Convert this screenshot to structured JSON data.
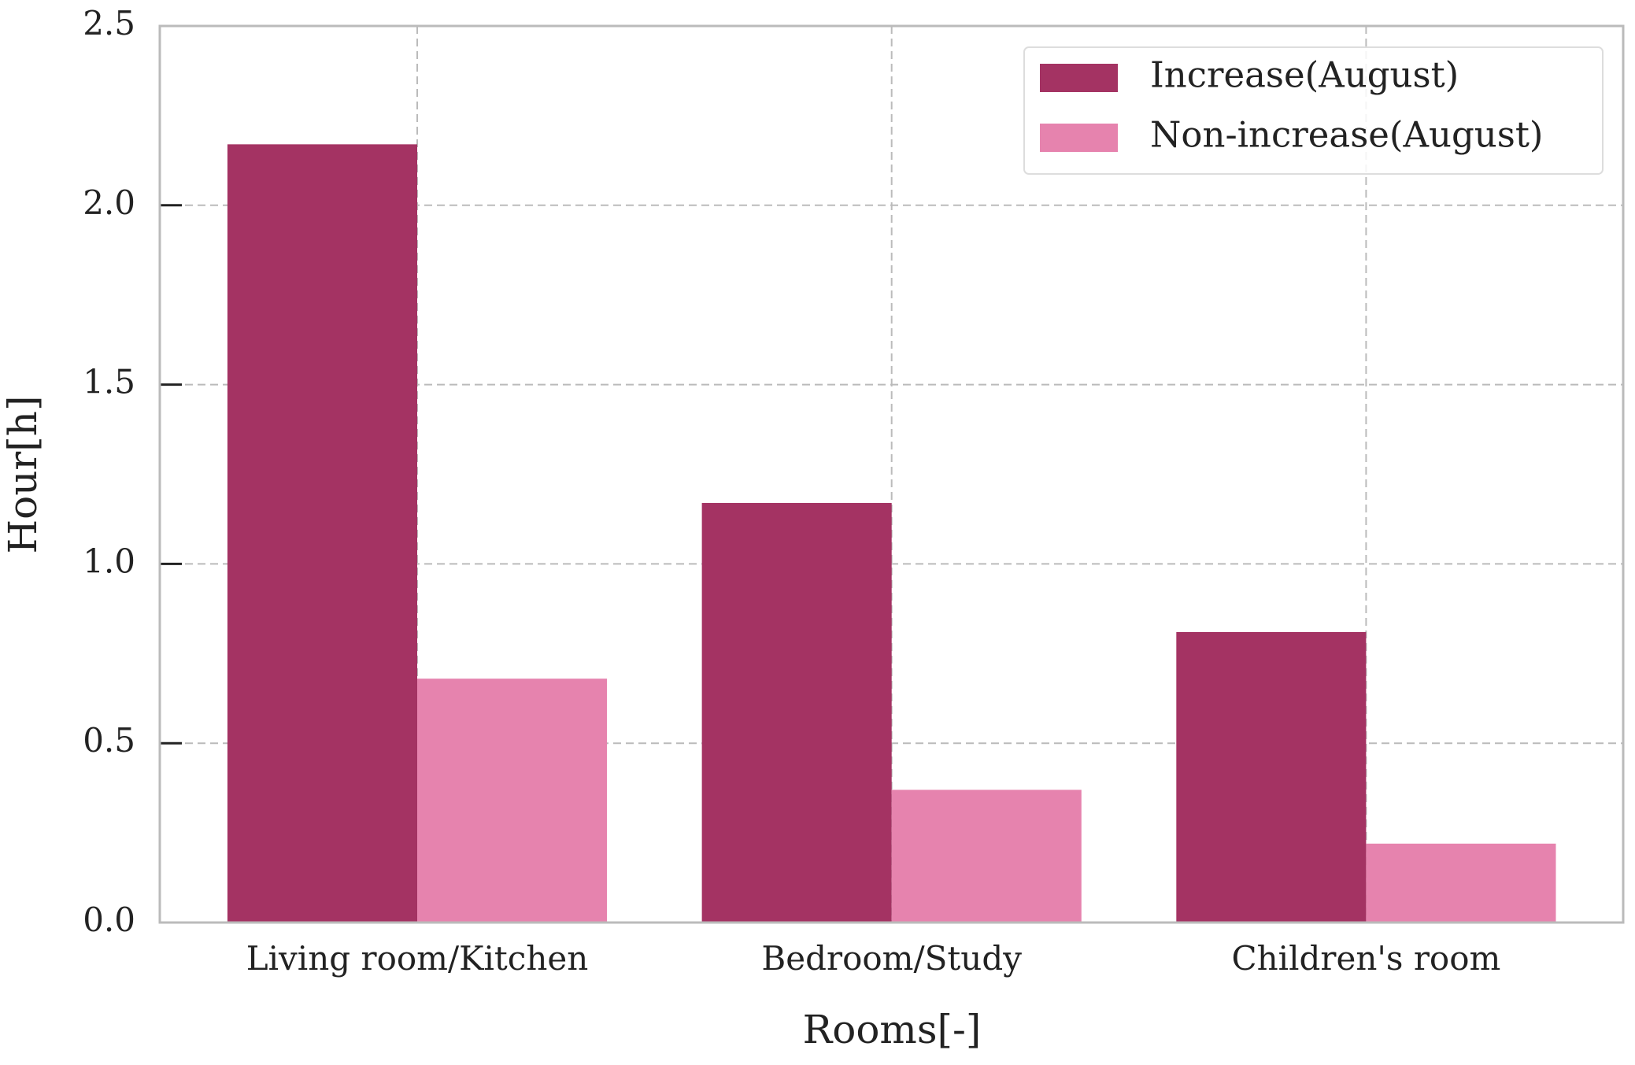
{
  "chart_data": {
    "type": "bar",
    "x_label": "Rooms[-]",
    "y_label": "Hour[h]",
    "categories": [
      "Living room/Kitchen",
      "Bedroom/Study",
      "Children's room"
    ],
    "series": [
      {
        "name": "Increase(August)",
        "color": "#a43363",
        "values": [
          2.17,
          1.17,
          0.81
        ]
      },
      {
        "name": "Non-increase(August)",
        "color": "#e683ae",
        "values": [
          0.68,
          0.37,
          0.22
        ]
      }
    ],
    "ylim": [
      0,
      2.5
    ],
    "yticks": [
      {
        "value": 0,
        "label": "0.0"
      },
      0.5,
      {
        "value": 1,
        "label": "1.0"
      },
      1.5,
      {
        "value": 2,
        "label": "2.0"
      },
      2.5
    ],
    "grid": true,
    "legend": "upper right"
  }
}
